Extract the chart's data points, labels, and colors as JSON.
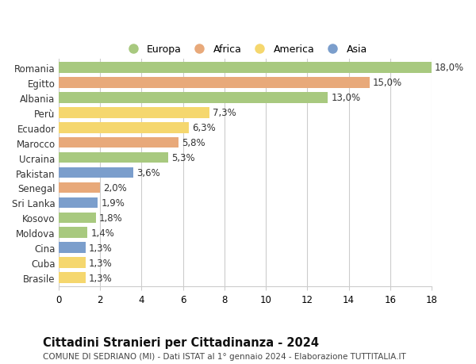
{
  "countries": [
    "Romania",
    "Egitto",
    "Albania",
    "Perù",
    "Ecuador",
    "Marocco",
    "Ucraina",
    "Pakistan",
    "Senegal",
    "Sri Lanka",
    "Kosovo",
    "Moldova",
    "Cina",
    "Cuba",
    "Brasile"
  ],
  "values": [
    18.0,
    15.0,
    13.0,
    7.3,
    6.3,
    5.8,
    5.3,
    3.6,
    2.0,
    1.9,
    1.8,
    1.4,
    1.3,
    1.3,
    1.3
  ],
  "continents": [
    "Europa",
    "Africa",
    "Europa",
    "America",
    "America",
    "Africa",
    "Europa",
    "Asia",
    "Africa",
    "Asia",
    "Europa",
    "Europa",
    "Asia",
    "America",
    "America"
  ],
  "colors": {
    "Europa": "#a8c97f",
    "Africa": "#e8a97a",
    "America": "#f5d76e",
    "Asia": "#7b9ecc"
  },
  "legend_order": [
    "Europa",
    "Africa",
    "America",
    "Asia"
  ],
  "xlim": [
    0,
    18
  ],
  "xticks": [
    0,
    2,
    4,
    6,
    8,
    10,
    12,
    14,
    16,
    18
  ],
  "title": "Cittadini Stranieri per Cittadinanza - 2024",
  "subtitle": "COMUNE DI SEDRIANO (MI) - Dati ISTAT al 1° gennaio 2024 - Elaborazione TUTTITALIA.IT",
  "background_color": "#ffffff",
  "grid_color": "#cccccc",
  "bar_height": 0.72,
  "label_fontsize": 8.5,
  "ytick_fontsize": 8.5,
  "xtick_fontsize": 8.5,
  "title_fontsize": 10.5,
  "subtitle_fontsize": 7.5
}
